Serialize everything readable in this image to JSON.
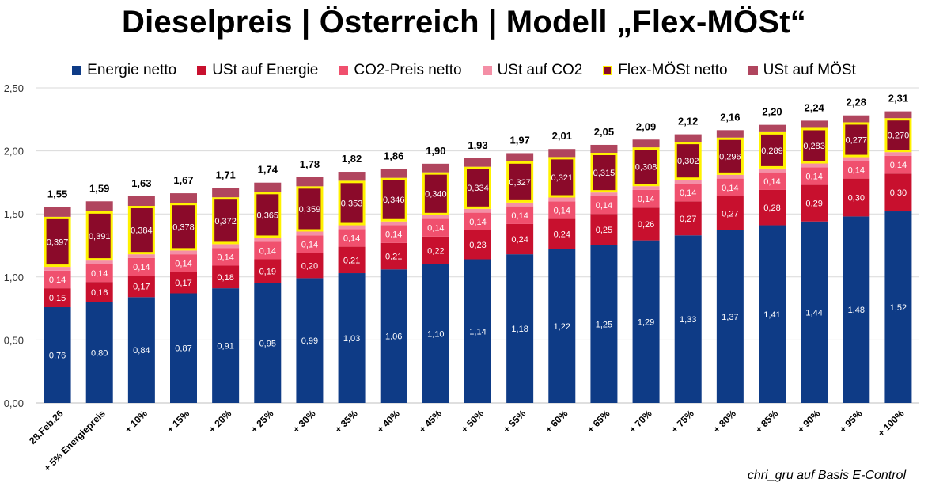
{
  "chart_data": {
    "type": "bar",
    "stacked": true,
    "title": "Dieselpreis | Österreich | Modell „Flex-MÖSt“",
    "categories": [
      "28.Feb.26",
      "+ 5% Energiepreis",
      "+ 10%",
      "+ 15%",
      "+ 20%",
      "+ 25%",
      "+ 30%",
      "+ 35%",
      "+ 40%",
      "+ 45%",
      "+ 50%",
      "+ 55%",
      "+ 60%",
      "+ 65%",
      "+ 70%",
      "+ 75%",
      "+ 80%",
      "+ 85%",
      "+ 90%",
      "+ 95%",
      "+ 100%"
    ],
    "series": [
      {
        "name": "Energie netto",
        "color": "#0E3B86",
        "values": [
          0.76,
          0.8,
          0.84,
          0.87,
          0.91,
          0.95,
          0.99,
          1.03,
          1.06,
          1.1,
          1.14,
          1.18,
          1.22,
          1.25,
          1.29,
          1.33,
          1.37,
          1.41,
          1.44,
          1.48,
          1.52
        ],
        "labels": [
          "0,76",
          "0,80",
          "0,84",
          "0,87",
          "0,91",
          "0,95",
          "0,99",
          "1,03",
          "1,06",
          "1,10",
          "1,14",
          "1,18",
          "1,22",
          "1,25",
          "1,29",
          "1,33",
          "1,37",
          "1,41",
          "1,44",
          "1,48",
          "1,52"
        ]
      },
      {
        "name": "USt auf Energie",
        "color": "#C8102E",
        "values": [
          0.15,
          0.16,
          0.17,
          0.17,
          0.18,
          0.19,
          0.2,
          0.21,
          0.21,
          0.22,
          0.23,
          0.24,
          0.24,
          0.25,
          0.26,
          0.27,
          0.27,
          0.28,
          0.29,
          0.3,
          0.3
        ],
        "labels": [
          "0,15",
          "0,16",
          "0,17",
          "0,17",
          "0,18",
          "0,19",
          "0,20",
          "0,21",
          "0,21",
          "0,22",
          "0,23",
          "0,24",
          "0,24",
          "0,25",
          "0,26",
          "0,27",
          "0,27",
          "0,28",
          "0,29",
          "0,30",
          "0,30"
        ]
      },
      {
        "name": "CO2-Preis netto",
        "color": "#F0506E",
        "values": [
          0.14,
          0.14,
          0.14,
          0.14,
          0.14,
          0.14,
          0.14,
          0.14,
          0.14,
          0.14,
          0.14,
          0.14,
          0.14,
          0.14,
          0.14,
          0.14,
          0.14,
          0.14,
          0.14,
          0.14,
          0.14
        ],
        "labels": [
          "0,14",
          "0,14",
          "0,14",
          "0,14",
          "0,14",
          "0,14",
          "0,14",
          "0,14",
          "0,14",
          "0,14",
          "0,14",
          "0,14",
          "0,14",
          "0,14",
          "0,14",
          "0,14",
          "0,14",
          "0,14",
          "0,14",
          "0,14",
          "0,14"
        ]
      },
      {
        "name": "USt auf CO2",
        "color": "#F48FA6",
        "values": [
          0.03,
          0.03,
          0.03,
          0.03,
          0.03,
          0.03,
          0.03,
          0.03,
          0.03,
          0.03,
          0.03,
          0.03,
          0.03,
          0.03,
          0.03,
          0.03,
          0.03,
          0.03,
          0.03,
          0.03,
          0.03
        ]
      },
      {
        "name": "Flex-MÖSt netto",
        "color": "#8B0A2A",
        "border_color": "#FFF200",
        "values": [
          0.397,
          0.391,
          0.384,
          0.378,
          0.372,
          0.365,
          0.359,
          0.353,
          0.346,
          0.34,
          0.334,
          0.327,
          0.321,
          0.315,
          0.308,
          0.302,
          0.296,
          0.289,
          0.283,
          0.277,
          0.27
        ],
        "labels": [
          "0,397",
          "0,391",
          "0,384",
          "0,378",
          "0,372",
          "0,365",
          "0,359",
          "0,353",
          "0,346",
          "0,340",
          "0,334",
          "0,327",
          "0,321",
          "0,315",
          "0,308",
          "0,302",
          "0,296",
          "0,289",
          "0,283",
          "0,277",
          "0,270"
        ]
      },
      {
        "name": "USt auf MÖSt",
        "color": "#B0455E",
        "values": [
          0.079,
          0.079,
          0.077,
          0.076,
          0.074,
          0.073,
          0.072,
          0.071,
          0.069,
          0.068,
          0.067,
          0.065,
          0.064,
          0.063,
          0.062,
          0.06,
          0.059,
          0.058,
          0.057,
          0.055,
          0.054
        ]
      }
    ],
    "totals": [
      "1,55",
      "1,59",
      "1,63",
      "1,67",
      "1,71",
      "1,74",
      "1,78",
      "1,82",
      "1,86",
      "1,90",
      "1,93",
      "1,97",
      "2,01",
      "2,05",
      "2,09",
      "2,12",
      "2,16",
      "2,20",
      "2,24",
      "2,28",
      "2,31"
    ],
    "total_values": [
      1.55,
      1.59,
      1.63,
      1.67,
      1.71,
      1.74,
      1.78,
      1.82,
      1.86,
      1.9,
      1.93,
      1.97,
      2.01,
      2.05,
      2.09,
      2.12,
      2.16,
      2.2,
      2.24,
      2.28,
      2.31
    ],
    "y_ticks": [
      0,
      0.5,
      1.0,
      1.5,
      2.0,
      2.5
    ],
    "y_tick_labels": [
      "0,00",
      "0,50",
      "1,00",
      "1,50",
      "2,00",
      "2,50"
    ],
    "ylim": [
      0,
      2.5
    ],
    "grid": true,
    "legend_position": "top",
    "xlabel": "",
    "ylabel": ""
  },
  "source": "chri_gru auf Basis E-Control"
}
